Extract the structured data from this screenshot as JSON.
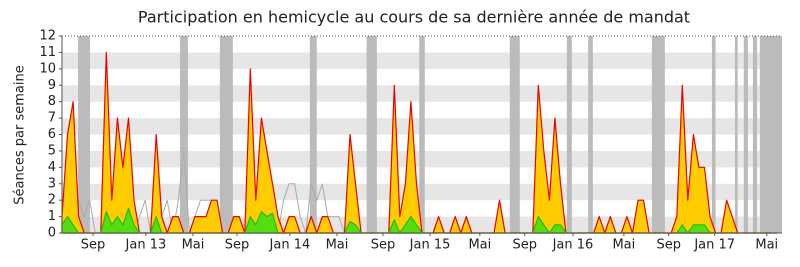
{
  "chart_data": {
    "type": "area",
    "title": "Participation en hemicycle au cours de sa dernière année de mandat",
    "y_label": "Séances par semaine",
    "xlim": [
      0,
      260
    ],
    "ylim": [
      0,
      12
    ],
    "yticks": [
      0,
      1,
      2,
      3,
      4,
      5,
      6,
      7,
      8,
      9,
      10,
      11,
      12
    ],
    "xticks": [
      {
        "value": 11.2,
        "label": "Sep"
      },
      {
        "value": 30.3,
        "label": "Jan 13"
      },
      {
        "value": 47.3,
        "label": "Mai"
      },
      {
        "value": 63.2,
        "label": "Sep"
      },
      {
        "value": 82.3,
        "label": "Jan 14"
      },
      {
        "value": 99.3,
        "label": "Mai"
      },
      {
        "value": 115.9,
        "label": "Sep"
      },
      {
        "value": 132.9,
        "label": "Jan 15"
      },
      {
        "value": 150.9,
        "label": "Mai"
      },
      {
        "value": 167.1,
        "label": "Sep"
      },
      {
        "value": 184.5,
        "label": "Jan 16"
      },
      {
        "value": 202.9,
        "label": "Mai"
      },
      {
        "value": 219.1,
        "label": "Sep"
      },
      {
        "value": 235.7,
        "label": "Jan 17"
      },
      {
        "value": 254.5,
        "label": "Mai"
      }
    ],
    "shaded_ranges": [
      [
        5.8,
        10.1
      ],
      [
        42.6,
        45.5
      ],
      [
        57,
        61.7
      ],
      [
        89.5,
        92
      ],
      [
        110,
        113.7
      ],
      [
        129,
        131
      ],
      [
        161.7,
        165.3
      ],
      [
        182.3,
        184.1
      ],
      [
        190,
        191.7
      ],
      [
        213,
        217.7
      ],
      [
        234.7,
        236
      ],
      [
        243,
        244
      ],
      [
        246.2,
        247.7
      ],
      [
        249.5,
        251
      ],
      [
        252,
        260
      ]
    ],
    "shade_color": "#bbbbbb",
    "x": [
      0,
      2,
      4,
      6,
      8,
      10,
      12,
      14,
      16,
      18,
      20,
      22,
      24,
      26,
      28,
      30,
      32,
      34,
      36,
      38,
      40,
      42,
      44,
      46,
      48,
      50,
      52,
      54,
      56,
      58,
      60,
      62,
      64,
      66,
      68,
      70,
      72,
      74,
      76,
      78,
      80,
      82,
      84,
      86,
      88,
      90,
      92,
      94,
      96,
      98,
      100,
      102,
      104,
      106,
      108,
      110,
      112,
      114,
      116,
      118,
      120,
      122,
      124,
      126,
      128,
      130,
      132,
      134,
      136,
      138,
      140,
      142,
      144,
      146,
      148,
      150,
      152,
      154,
      156,
      158,
      160,
      162,
      164,
      166,
      168,
      170,
      172,
      174,
      176,
      178,
      180,
      182,
      184,
      186,
      188,
      190,
      192,
      194,
      196,
      198,
      200,
      202,
      204,
      206,
      208,
      210,
      212,
      214,
      216,
      218,
      220,
      222,
      224,
      226,
      228,
      230,
      232,
      234,
      236,
      238,
      240,
      242,
      244,
      246,
      248,
      250,
      252,
      254,
      256,
      258
    ],
    "series": [
      {
        "color": "#aaaaaa",
        "fill": false,
        "values": [
          1,
          2,
          1,
          2,
          1,
          2,
          0,
          0,
          2,
          1,
          2,
          1,
          2,
          0,
          1,
          2,
          0,
          2,
          1,
          2,
          0,
          2,
          5,
          0,
          1,
          2,
          2,
          2,
          1,
          0,
          0,
          1,
          1,
          0,
          1,
          2,
          1,
          2,
          1,
          0,
          2,
          3,
          3,
          1,
          0,
          3,
          2,
          3,
          1,
          1,
          1,
          0,
          1,
          1,
          0,
          0,
          0,
          0,
          0,
          0,
          0,
          0,
          0,
          0,
          0,
          0,
          0,
          0,
          0,
          0,
          0,
          0,
          0,
          0,
          0,
          0,
          0,
          0,
          0,
          0,
          0,
          0,
          0,
          0,
          0,
          0,
          0,
          0,
          0,
          0,
          0,
          0,
          0,
          0,
          0,
          0,
          0,
          0,
          0,
          0,
          0,
          0,
          0,
          0,
          0,
          0,
          0,
          0,
          0,
          0,
          0,
          0,
          0,
          0,
          0,
          0,
          0,
          0,
          0,
          0,
          0,
          0,
          0,
          0,
          0,
          0,
          0,
          0,
          0,
          0
        ]
      },
      {
        "color": "#ffcc00",
        "line_color": "#ee0000",
        "fill": true,
        "values": [
          1,
          6,
          8,
          1,
          0,
          0,
          0,
          0,
          11,
          2,
          7,
          4,
          7,
          2,
          0,
          0,
          0,
          6,
          1,
          0,
          1,
          1,
          0,
          0,
          1,
          1,
          1,
          2,
          2,
          0,
          0,
          1,
          1,
          0,
          10,
          2,
          7,
          5,
          3,
          1,
          0,
          1,
          1,
          0,
          0,
          1,
          0,
          1,
          1,
          0,
          0,
          0,
          6,
          3,
          0,
          0,
          0,
          0,
          0,
          0,
          9,
          1,
          3,
          8,
          3,
          0,
          0,
          0,
          1,
          0,
          0,
          1,
          0,
          1,
          0,
          0,
          0,
          0,
          0,
          2,
          0,
          0,
          0,
          0,
          0,
          0,
          9,
          5,
          2,
          7,
          3,
          0,
          0,
          0,
          0,
          0,
          0,
          1,
          0,
          1,
          0,
          0,
          1,
          0,
          2,
          2,
          0,
          0,
          0,
          0,
          0,
          1,
          9,
          2,
          6,
          4,
          4,
          1,
          0,
          0,
          2,
          1,
          0,
          0,
          0,
          0,
          0,
          0,
          0,
          0
        ]
      },
      {
        "color": "#55dd11",
        "line_color": "#22bb00",
        "fill": true,
        "values": [
          0.5,
          1,
          0.5,
          0,
          0,
          0,
          0,
          0,
          1.3,
          0.5,
          1,
          0.5,
          1.5,
          0.5,
          0,
          0,
          0,
          1,
          0,
          0,
          0,
          0,
          0,
          0,
          0,
          0,
          0,
          0,
          0,
          0,
          0,
          0,
          0,
          0,
          1,
          0.5,
          1.3,
          1,
          1.2,
          0,
          0,
          0,
          0,
          0,
          0,
          0,
          0,
          0,
          0,
          0,
          0,
          0,
          0.7,
          0.5,
          0,
          0,
          0,
          0,
          0,
          0,
          0.8,
          0,
          0.5,
          1,
          0.5,
          0,
          0,
          0,
          0,
          0,
          0,
          0,
          0,
          0,
          0,
          0,
          0,
          0,
          0,
          0,
          0,
          0,
          0,
          0,
          0,
          0,
          1,
          0.5,
          0,
          0.5,
          0.5,
          0,
          0,
          0,
          0,
          0,
          0,
          0,
          0,
          0,
          0,
          0,
          0,
          0,
          0,
          0,
          0,
          0,
          0,
          0,
          0,
          0,
          0.5,
          0,
          0.5,
          0.5,
          0.5,
          0,
          0,
          0,
          0,
          0,
          0,
          0,
          0,
          0,
          0,
          0,
          0,
          0
        ]
      }
    ]
  }
}
